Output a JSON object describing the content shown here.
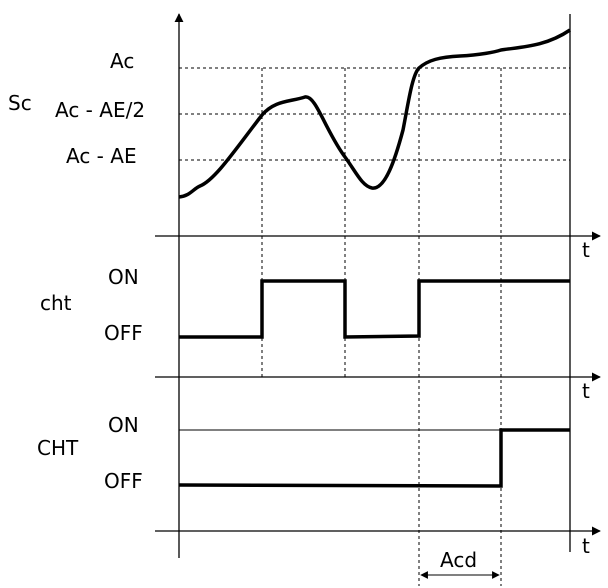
{
  "labels": {
    "sc": "Sc",
    "ac": "Ac",
    "ac_ae_half": "Ac - AE/2",
    "ac_ae": "Ac - AE",
    "t1": "t",
    "t2": "t",
    "t3": "t",
    "cht_lower": "cht",
    "cht_on": "ON",
    "cht_off": "OFF",
    "cht_upper": "CHT",
    "cht_upper_on": "ON",
    "cht_upper_off": "OFF",
    "acd": "Acd"
  }
}
